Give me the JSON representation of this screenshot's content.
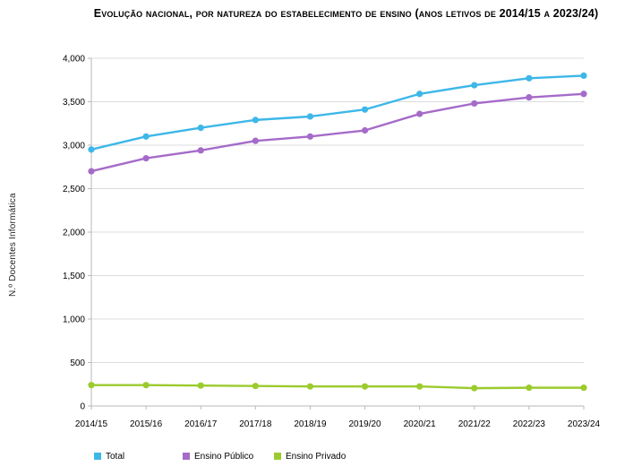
{
  "chart_data": {
    "type": "line",
    "title": "Evolução nacional, por natureza do estabelecimento de ensino (anos letivos de 2014/15 a 2023/24)",
    "ylabel": "N.º Docentes Informática",
    "xlabel": "",
    "categories": [
      "2014/15",
      "2015/16",
      "2016/17",
      "2017/18",
      "2018/19",
      "2019/20",
      "2020/21",
      "2021/22",
      "2022/23",
      "2023/24"
    ],
    "series": [
      {
        "name": "Total",
        "color": "#3db7e8",
        "values": [
          2950,
          3100,
          3200,
          3290,
          3330,
          3410,
          3590,
          3690,
          3770,
          3800
        ]
      },
      {
        "name": "Ensino Público",
        "color": "#a56bc9",
        "values": [
          2700,
          2850,
          2940,
          3050,
          3100,
          3170,
          3360,
          3480,
          3550,
          3590
        ]
      },
      {
        "name": "Ensino Privado",
        "color": "#9bcb2d",
        "values": [
          240,
          240,
          235,
          230,
          225,
          225,
          225,
          205,
          210,
          210
        ]
      }
    ],
    "ylim": [
      0,
      4000
    ],
    "ytick_step": 500,
    "ytick_labels": [
      "0",
      "500",
      "1,000",
      "1,500",
      "2,000",
      "2,500",
      "3,000",
      "3,500",
      "4,000"
    ],
    "grid": true,
    "legend_position": "bottom-left",
    "colors": {
      "grid": "#dcdcdc",
      "axis": "#b8b8b8",
      "tick": "#b8b8b8",
      "text": "#000000"
    }
  }
}
